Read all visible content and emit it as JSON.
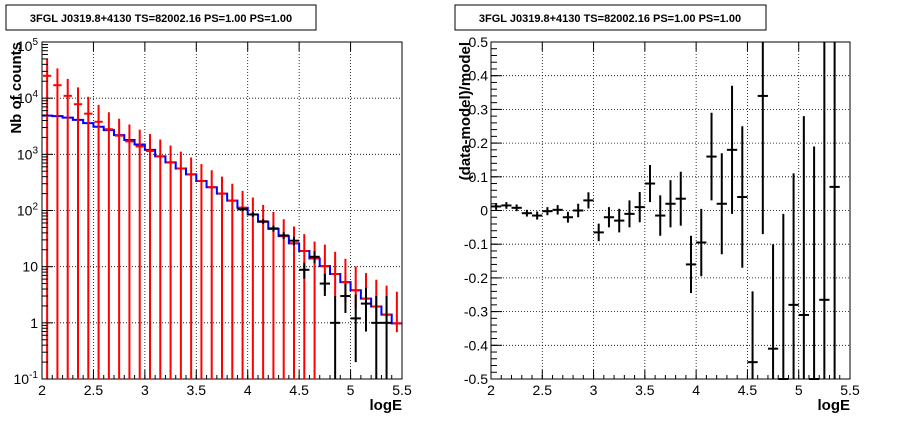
{
  "chart_data": [
    {
      "type": "line",
      "title": "3FGL J0319.8+4130 TS=82002.16 PS=1.00 PS=1.00",
      "xlabel": "logE",
      "ylabel": "Nb of counts",
      "xlim": [
        2,
        5.5
      ],
      "ylim": [
        0.1,
        100000
      ],
      "yscale": "log",
      "grid": true,
      "x_ticks": [
        "2",
        "2.5",
        "3",
        "3.5",
        "4",
        "4.5",
        "5",
        "5.5"
      ],
      "y_ticks": [
        "10^-1",
        "1",
        "10",
        "10^2",
        "10^3",
        "10^4",
        "10^5"
      ],
      "bin_edges": [
        2.0,
        2.1,
        2.2,
        2.3,
        2.4,
        2.5,
        2.6,
        2.7,
        2.8,
        2.9,
        3.0,
        3.1,
        3.2,
        3.3,
        3.4,
        3.5,
        3.6,
        3.7,
        3.8,
        3.9,
        4.0,
        4.1,
        4.2,
        4.3,
        4.4,
        4.5,
        4.6,
        4.7,
        4.8,
        4.9,
        5.0,
        5.1,
        5.2,
        5.3,
        5.4,
        5.5
      ],
      "series": [
        {
          "color": "#0000ff",
          "style": "step",
          "values": [
            4900,
            4800,
            4500,
            4100,
            3600,
            3100,
            2700,
            2200,
            1800,
            1500,
            1200,
            920,
            720,
            560,
            440,
            335,
            260,
            200,
            150,
            112,
            85,
            63,
            47,
            35,
            26,
            19,
            14,
            10.2,
            7.4,
            5.3,
            3.8,
            2.7,
            1.95,
            1.4,
            0.98
          ]
        },
        {
          "color": "#ff0000",
          "style": "points",
          "values": [
            25000,
            17000,
            11000,
            7800,
            5300,
            3800,
            2800,
            2150,
            1700,
            1380,
            1150,
            920,
            720,
            560,
            440,
            335,
            260,
            200,
            150,
            112,
            85,
            63,
            47,
            35,
            26,
            19,
            14,
            10.2,
            7.4,
            5.3,
            3.8,
            2.7,
            1.95,
            1.4,
            0.98
          ],
          "err_low": [
            25000,
            17000,
            11000,
            7800,
            5300,
            3800,
            2800,
            2150,
            1700,
            1380,
            1150,
            920,
            720,
            560,
            440,
            335,
            260,
            200,
            150,
            112,
            85,
            63,
            47,
            35,
            26,
            19,
            14,
            6.5,
            4.5,
            3.0,
            2.0,
            1.3,
            0.8,
            0.5,
            0.3
          ],
          "err_high": [
            25000,
            17000,
            11000,
            7800,
            5300,
            3800,
            2800,
            2150,
            1700,
            1380,
            1150,
            920,
            720,
            560,
            440,
            335,
            260,
            200,
            150,
            112,
            85,
            63,
            47,
            35,
            26,
            19,
            14,
            14.5,
            11,
            8.5,
            6.3,
            5.0,
            3.9,
            3.2,
            2.6
          ]
        },
        {
          "color": "#000000",
          "style": "points",
          "x": [
            3.95,
            4.05,
            4.15,
            4.25,
            4.35,
            4.45,
            4.55,
            4.65,
            4.75,
            4.85,
            4.95,
            5.05,
            5.15,
            5.25,
            5.35
          ],
          "values": [
            105,
            85,
            64,
            48,
            36,
            29,
            8.8,
            15,
            5.0,
            1.0,
            3.0,
            1.2,
            2.2,
            1.0,
            1.0
          ],
          "err_low": [
            8,
            8,
            6,
            6,
            5,
            5,
            2.7,
            3.5,
            2.0,
            0.9,
            1.5,
            1.0,
            1.5,
            0.9,
            0.9
          ],
          "err_high": [
            8,
            8,
            6,
            6,
            5,
            5,
            3.0,
            4.0,
            2.5,
            2.0,
            2.0,
            2.0,
            2.0,
            2.0,
            2.0
          ]
        }
      ]
    },
    {
      "type": "scatter",
      "title": "3FGL J0319.8+4130 TS=82002.16 PS=1.00 PS=1.00",
      "xlabel": "logE",
      "ylabel": "(data-model)/model",
      "xlim": [
        2,
        5.5
      ],
      "ylim": [
        -0.5,
        0.5
      ],
      "grid": true,
      "x_ticks": [
        "2",
        "2.5",
        "3",
        "3.5",
        "4",
        "4.5",
        "5",
        "5.5"
      ],
      "y_ticks": [
        "-0.5",
        "-0.4",
        "-0.3",
        "-0.2",
        "-0.1",
        "0",
        "0.1",
        "0.2",
        "0.3",
        "0.4",
        "0.5"
      ],
      "series": [
        {
          "color": "#000000",
          "x": [
            2.05,
            2.15,
            2.25,
            2.35,
            2.45,
            2.55,
            2.65,
            2.75,
            2.85,
            2.95,
            3.05,
            3.15,
            3.25,
            3.35,
            3.45,
            3.55,
            3.65,
            3.75,
            3.85,
            3.95,
            4.05,
            4.15,
            4.25,
            4.35,
            4.45,
            4.55,
            4.65,
            4.75,
            4.85,
            4.95,
            5.05,
            5.15,
            5.25,
            5.35
          ],
          "values": [
            0.012,
            0.015,
            0.008,
            -0.008,
            -0.015,
            -0.002,
            0.002,
            -0.02,
            0.0,
            0.03,
            -0.065,
            -0.02,
            -0.03,
            -0.01,
            0.01,
            0.08,
            -0.015,
            0.02,
            0.035,
            -0.16,
            -0.095,
            0.16,
            0.02,
            0.18,
            0.04,
            -0.45,
            0.34,
            -0.41,
            -0.5,
            -0.28,
            -0.31,
            -0.5,
            -0.265,
            0.07
          ],
          "err": [
            0.01,
            0.01,
            0.01,
            0.01,
            0.012,
            0.012,
            0.014,
            0.016,
            0.02,
            0.024,
            0.026,
            0.03,
            0.035,
            0.04,
            0.045,
            0.055,
            0.06,
            0.07,
            0.08,
            0.085,
            0.1,
            0.13,
            0.15,
            0.19,
            0.21,
            0.21,
            0.41,
            0.31,
            0.49,
            0.39,
            0.59,
            0.69,
            0.79,
            0.89
          ]
        }
      ]
    }
  ]
}
